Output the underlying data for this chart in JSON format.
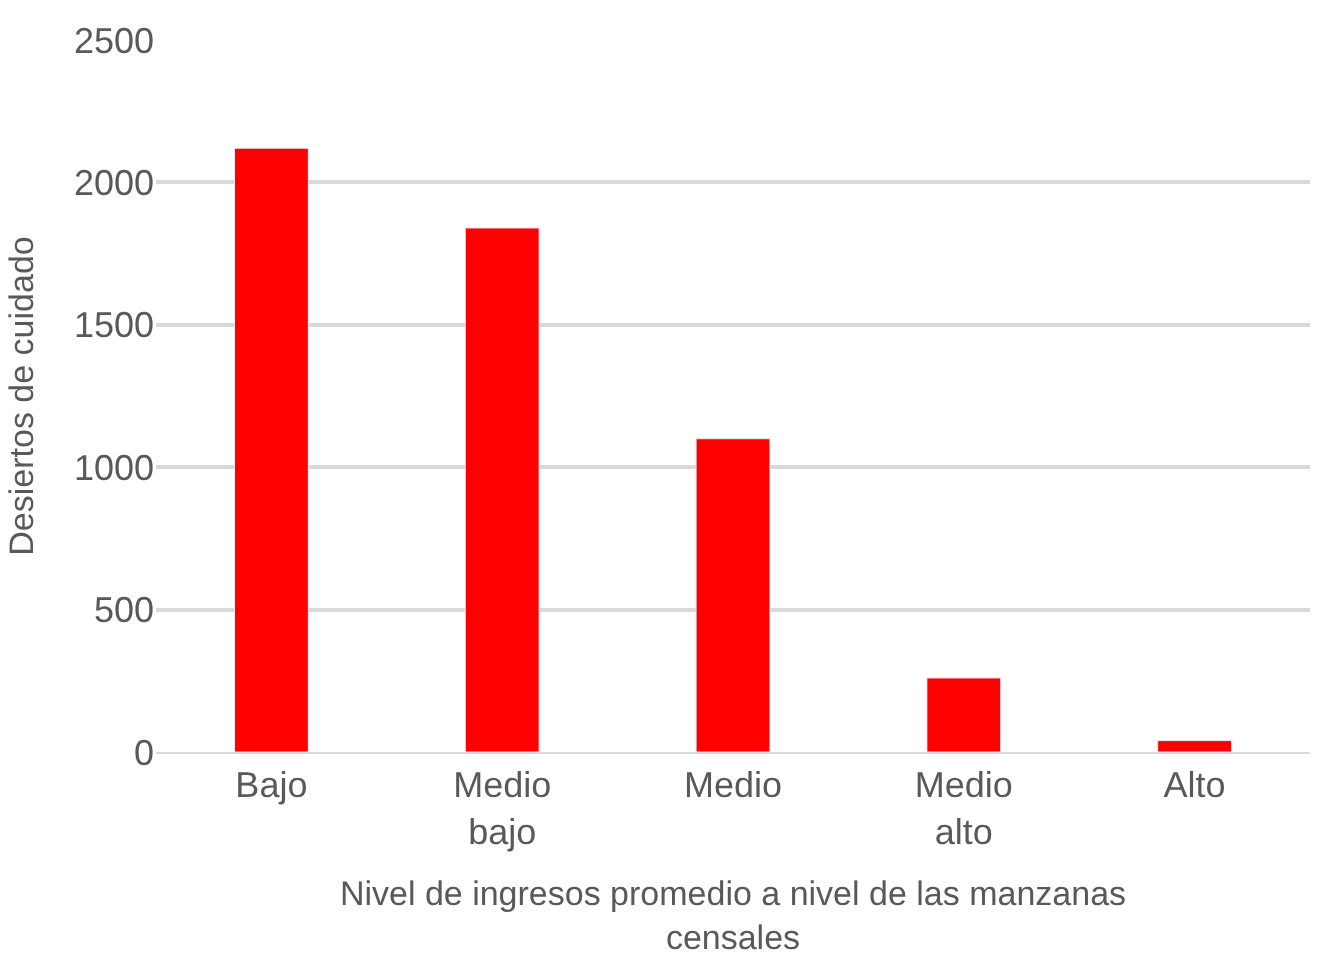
{
  "chart_data": {
    "type": "bar",
    "xlabel": "Nivel de ingresos promedio a nivel de las manzanas censales",
    "ylabel": "Desiertos de cuidado",
    "categories": [
      "Bajo",
      "Medio bajo",
      "Medio",
      "Medio alto",
      "Alto"
    ],
    "values": [
      2120,
      1840,
      1100,
      260,
      40
    ],
    "color": "#ff0000",
    "ylim": [
      0,
      2500
    ],
    "yticks": [
      0,
      500,
      1000,
      1500,
      2000,
      2500
    ],
    "grid": "y"
  }
}
